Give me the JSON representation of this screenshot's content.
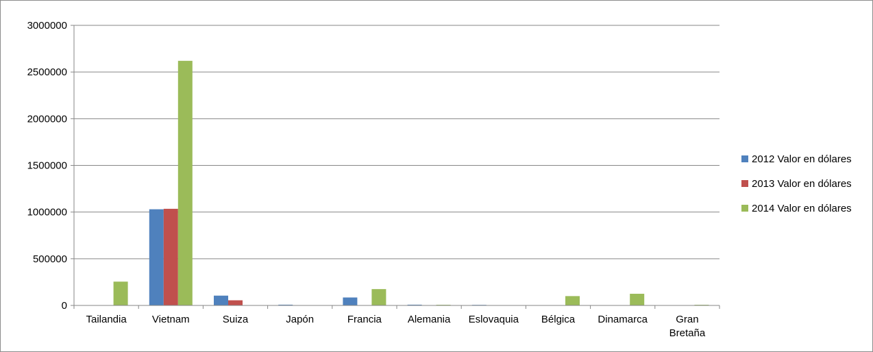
{
  "chart_data": {
    "type": "bar",
    "title": "",
    "xlabel": "",
    "ylabel": "",
    "categories": [
      "Tailandia",
      "Vietnam",
      "Suiza",
      "Japón",
      "Francia",
      "Alemania",
      "Eslovaquia",
      "Bélgica",
      "Dinamarca",
      "Gran Bretaña"
    ],
    "series": [
      {
        "name": "2012 Valor en dólares",
        "color": "#4f81bd",
        "values": [
          0,
          1030000,
          105000,
          8000,
          85000,
          8000,
          6000,
          0,
          0,
          0
        ]
      },
      {
        "name": "2013 Valor en dólares",
        "color": "#c0504d",
        "values": [
          0,
          1035000,
          55000,
          0,
          0,
          0,
          0,
          0,
          0,
          0
        ]
      },
      {
        "name": "2014 Valor en dólares",
        "color": "#9bbb59",
        "values": [
          255000,
          2620000,
          0,
          0,
          175000,
          7000,
          0,
          100000,
          125000,
          7000
        ]
      }
    ],
    "ylim": [
      0,
      3000000
    ],
    "yticks": [
      0,
      500000,
      1000000,
      1500000,
      2000000,
      2500000,
      3000000
    ],
    "grid": true,
    "legend_position": "right"
  }
}
